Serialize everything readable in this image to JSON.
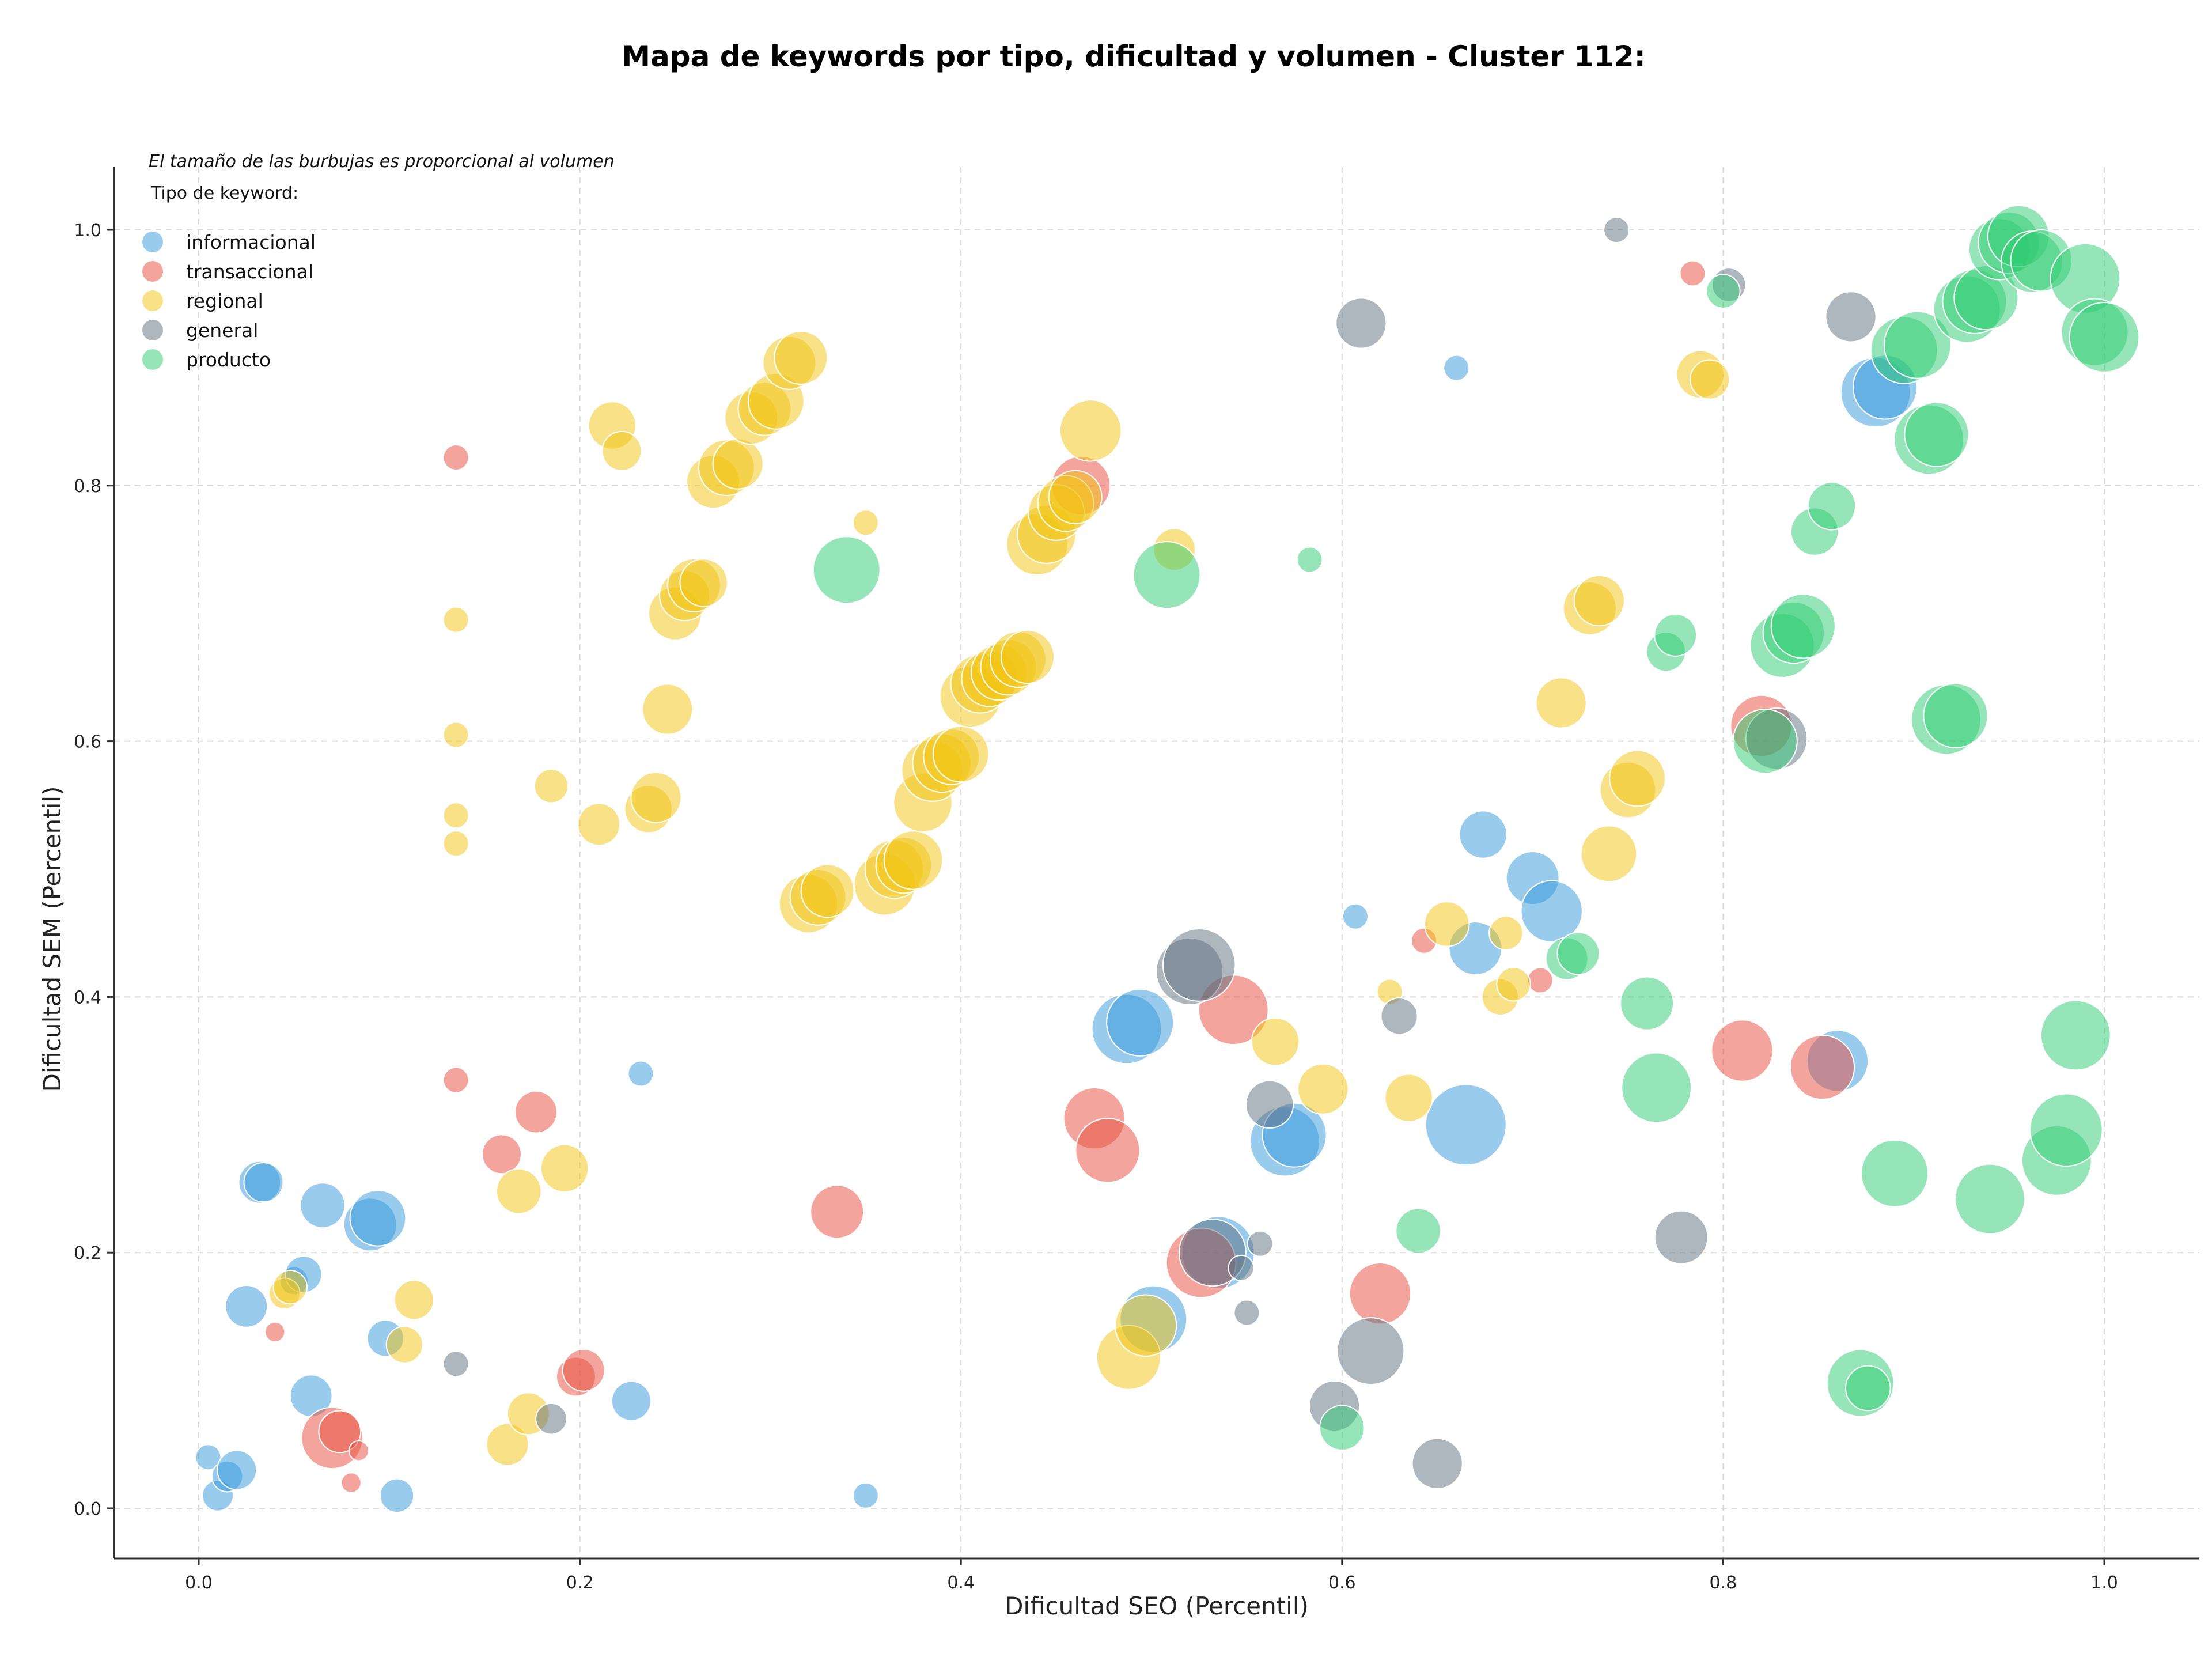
{
  "chart_data": {
    "type": "scatter",
    "title": "Mapa de keywords por tipo, dificultad y volumen - Cluster 112:",
    "xlabel": "Dificultad SEO (Percentil)",
    "ylabel": "Dificultad SEM (Percentil)",
    "xlim": [
      -0.045,
      1.05
    ],
    "ylim": [
      -0.04,
      1.05
    ],
    "xticks": [
      "0.0",
      "0.2",
      "0.4",
      "0.6",
      "0.8",
      "1.0"
    ],
    "yticks": [
      "0.0",
      "0.2",
      "0.4",
      "0.6",
      "0.8",
      "1.0"
    ],
    "grid": true,
    "legend_placement": "top-left",
    "note": "El tamaño de las burbujas es proporcional al volumen",
    "legend_title": "Tipo de keyword:",
    "series": [
      {
        "name": "informacional",
        "color": "#3498db",
        "points": [
          [
            0.005,
            0.04,
            1
          ],
          [
            0.01,
            0.01,
            1.2
          ],
          [
            0.015,
            0.025,
            1.2
          ],
          [
            0.02,
            0.03,
            1.5
          ],
          [
            0.025,
            0.158,
            1.6
          ],
          [
            0.032,
            0.255,
            1.6
          ],
          [
            0.034,
            0.255,
            1.5
          ],
          [
            0.05,
            0.178,
            1.1
          ],
          [
            0.055,
            0.183,
            1.4
          ],
          [
            0.059,
            0.088,
            1.6
          ],
          [
            0.065,
            0.237,
            1.7
          ],
          [
            0.09,
            0.222,
            2.0
          ],
          [
            0.094,
            0.227,
            2.1
          ],
          [
            0.098,
            0.133,
            1.4
          ],
          [
            0.104,
            0.01,
            1.3
          ],
          [
            0.227,
            0.084,
            1.5
          ],
          [
            0.232,
            0.34,
            1.0
          ],
          [
            0.35,
            0.01,
            1.0
          ],
          [
            0.487,
            0.375,
            2.6
          ],
          [
            0.494,
            0.38,
            2.5
          ],
          [
            0.501,
            0.148,
            2.5
          ],
          [
            0.535,
            0.2,
            2.7
          ],
          [
            0.57,
            0.287,
            2.6
          ],
          [
            0.575,
            0.292,
            2.4
          ],
          [
            0.607,
            0.463,
            1.0
          ],
          [
            0.66,
            0.892,
            1.0
          ],
          [
            0.665,
            0.3,
            3.0
          ],
          [
            0.67,
            0.438,
            2.0
          ],
          [
            0.674,
            0.527,
            1.8
          ],
          [
            0.7,
            0.493,
            2.0
          ],
          [
            0.71,
            0.467,
            2.3
          ],
          [
            0.88,
            0.873,
            2.6
          ],
          [
            0.885,
            0.877,
            2.4
          ],
          [
            0.86,
            0.35,
            2.3
          ]
        ]
      },
      {
        "name": "transaccional",
        "color": "#e74c3c",
        "points": [
          [
            0.04,
            0.138,
            0.8
          ],
          [
            0.07,
            0.055,
            2.3
          ],
          [
            0.074,
            0.06,
            1.6
          ],
          [
            0.08,
            0.02,
            0.8
          ],
          [
            0.084,
            0.045,
            0.8
          ],
          [
            0.135,
            0.822,
            1.0
          ],
          [
            0.135,
            0.335,
            1.0
          ],
          [
            0.159,
            0.277,
            1.5
          ],
          [
            0.177,
            0.31,
            1.6
          ],
          [
            0.198,
            0.103,
            1.5
          ],
          [
            0.202,
            0.108,
            1.6
          ],
          [
            0.335,
            0.232,
            2.0
          ],
          [
            0.47,
            0.305,
            2.3
          ],
          [
            0.477,
            0.28,
            2.4
          ],
          [
            0.463,
            0.8,
            2.2
          ],
          [
            0.526,
            0.192,
            2.6
          ],
          [
            0.543,
            0.39,
            2.6
          ],
          [
            0.62,
            0.168,
            2.3
          ],
          [
            0.643,
            0.444,
            1.0
          ],
          [
            0.704,
            0.413,
            1.0
          ],
          [
            0.784,
            0.966,
            1.0
          ],
          [
            0.82,
            0.612,
            2.3
          ],
          [
            0.852,
            0.345,
            2.4
          ],
          [
            0.81,
            0.358,
            2.3
          ]
        ]
      },
      {
        "name": "regional",
        "color": "#f1c40f",
        "points": [
          [
            0.045,
            0.168,
            1.2
          ],
          [
            0.048,
            0.173,
            1.3
          ],
          [
            0.108,
            0.128,
            1.4
          ],
          [
            0.113,
            0.163,
            1.5
          ],
          [
            0.135,
            0.695,
            1.0
          ],
          [
            0.135,
            0.605,
            1.0
          ],
          [
            0.135,
            0.542,
            1.0
          ],
          [
            0.135,
            0.52,
            1.0
          ],
          [
            0.162,
            0.05,
            1.6
          ],
          [
            0.168,
            0.248,
            1.7
          ],
          [
            0.173,
            0.074,
            1.6
          ],
          [
            0.185,
            0.565,
            1.3
          ],
          [
            0.192,
            0.266,
            1.8
          ],
          [
            0.21,
            0.535,
            1.6
          ],
          [
            0.217,
            0.847,
            1.8
          ],
          [
            0.222,
            0.827,
            1.5
          ],
          [
            0.236,
            0.547,
            1.8
          ],
          [
            0.24,
            0.556,
            1.9
          ],
          [
            0.246,
            0.625,
            1.9
          ],
          [
            0.25,
            0.7,
            2.0
          ],
          [
            0.255,
            0.714,
            1.9
          ],
          [
            0.26,
            0.722,
            2.0
          ],
          [
            0.265,
            0.724,
            1.8
          ],
          [
            0.27,
            0.803,
            2.0
          ],
          [
            0.277,
            0.814,
            2.1
          ],
          [
            0.283,
            0.817,
            1.9
          ],
          [
            0.29,
            0.853,
            2.0
          ],
          [
            0.297,
            0.86,
            2.0
          ],
          [
            0.303,
            0.866,
            2.1
          ],
          [
            0.31,
            0.896,
            2.0
          ],
          [
            0.316,
            0.9,
            2.0
          ],
          [
            0.32,
            0.473,
            2.2
          ],
          [
            0.325,
            0.478,
            2.1
          ],
          [
            0.33,
            0.483,
            2.0
          ],
          [
            0.35,
            0.771,
            1.0
          ],
          [
            0.36,
            0.488,
            2.3
          ],
          [
            0.365,
            0.5,
            2.2
          ],
          [
            0.37,
            0.503,
            2.1
          ],
          [
            0.375,
            0.507,
            2.2
          ],
          [
            0.38,
            0.552,
            2.2
          ],
          [
            0.385,
            0.577,
            2.3
          ],
          [
            0.39,
            0.583,
            2.2
          ],
          [
            0.395,
            0.588,
            2.1
          ],
          [
            0.4,
            0.59,
            2.1
          ],
          [
            0.405,
            0.635,
            2.3
          ],
          [
            0.41,
            0.645,
            2.2
          ],
          [
            0.415,
            0.649,
            2.1
          ],
          [
            0.42,
            0.654,
            2.1
          ],
          [
            0.425,
            0.658,
            2.1
          ],
          [
            0.43,
            0.664,
            2.1
          ],
          [
            0.435,
            0.666,
            2.0
          ],
          [
            0.44,
            0.754,
            2.3
          ],
          [
            0.445,
            0.762,
            2.2
          ],
          [
            0.45,
            0.779,
            2.1
          ],
          [
            0.455,
            0.786,
            2.1
          ],
          [
            0.46,
            0.791,
            2.0
          ],
          [
            0.468,
            0.843,
            2.3
          ],
          [
            0.488,
            0.118,
            2.4
          ],
          [
            0.497,
            0.143,
            2.3
          ],
          [
            0.512,
            0.75,
            1.6
          ],
          [
            0.565,
            0.365,
            1.8
          ],
          [
            0.59,
            0.328,
            1.9
          ],
          [
            0.625,
            0.404,
            1.0
          ],
          [
            0.635,
            0.321,
            1.8
          ],
          [
            0.655,
            0.457,
            1.7
          ],
          [
            0.683,
            0.4,
            1.4
          ],
          [
            0.686,
            0.45,
            1.3
          ],
          [
            0.69,
            0.41,
            1.3
          ],
          [
            0.715,
            0.63,
            1.9
          ],
          [
            0.73,
            0.704,
            2.0
          ],
          [
            0.735,
            0.71,
            1.9
          ],
          [
            0.74,
            0.512,
            2.1
          ],
          [
            0.75,
            0.562,
            2.1
          ],
          [
            0.755,
            0.571,
            2.1
          ],
          [
            0.788,
            0.887,
            1.8
          ],
          [
            0.793,
            0.883,
            1.5
          ]
        ]
      },
      {
        "name": "general",
        "color": "#5d6d7e",
        "points": [
          [
            0.135,
            0.113,
            1.0
          ],
          [
            0.185,
            0.07,
            1.2
          ],
          [
            0.52,
            0.42,
            2.5
          ],
          [
            0.525,
            0.425,
            2.7
          ],
          [
            0.532,
            0.2,
            2.5
          ],
          [
            0.547,
            0.188,
            1.0
          ],
          [
            0.55,
            0.153,
            1.0
          ],
          [
            0.557,
            0.207,
            1.0
          ],
          [
            0.562,
            0.316,
            1.8
          ],
          [
            0.596,
            0.08,
            1.9
          ],
          [
            0.61,
            0.927,
            1.9
          ],
          [
            0.615,
            0.123,
            2.5
          ],
          [
            0.63,
            0.385,
            1.4
          ],
          [
            0.65,
            0.035,
            1.9
          ],
          [
            0.744,
            1.0,
            1.0
          ],
          [
            0.778,
            0.212,
            2.0
          ],
          [
            0.803,
            0.957,
            1.3
          ],
          [
            0.828,
            0.602,
            2.3
          ],
          [
            0.867,
            0.932,
            1.9
          ]
        ]
      },
      {
        "name": "producto",
        "color": "#2ecc71",
        "points": [
          [
            0.34,
            0.734,
            2.5
          ],
          [
            0.508,
            0.73,
            2.5
          ],
          [
            0.583,
            0.742,
            1.0
          ],
          [
            0.6,
            0.063,
            1.7
          ],
          [
            0.64,
            0.217,
            1.7
          ],
          [
            0.718,
            0.43,
            1.6
          ],
          [
            0.724,
            0.434,
            1.6
          ],
          [
            0.76,
            0.395,
            2.0
          ],
          [
            0.765,
            0.329,
            2.6
          ],
          [
            0.77,
            0.67,
            1.5
          ],
          [
            0.775,
            0.683,
            1.6
          ],
          [
            0.8,
            0.952,
            1.3
          ],
          [
            0.822,
            0.6,
            2.4
          ],
          [
            0.831,
            0.675,
            2.4
          ],
          [
            0.837,
            0.685,
            2.3
          ],
          [
            0.842,
            0.69,
            2.4
          ],
          [
            0.848,
            0.764,
            1.8
          ],
          [
            0.857,
            0.784,
            1.8
          ],
          [
            0.872,
            0.098,
            2.5
          ],
          [
            0.876,
            0.094,
            1.7
          ],
          [
            0.89,
            0.262,
            2.5
          ],
          [
            0.895,
            0.906,
            2.5
          ],
          [
            0.902,
            0.91,
            2.5
          ],
          [
            0.908,
            0.836,
            2.6
          ],
          [
            0.912,
            0.84,
            2.4
          ],
          [
            0.917,
            0.617,
            2.6
          ],
          [
            0.922,
            0.62,
            2.4
          ],
          [
            0.928,
            0.938,
            2.5
          ],
          [
            0.932,
            0.944,
            2.4
          ],
          [
            0.938,
            0.947,
            2.4
          ],
          [
            0.94,
            0.242,
            2.6
          ],
          [
            0.945,
            0.985,
            2.3
          ],
          [
            0.95,
            0.99,
            2.3
          ],
          [
            0.955,
            0.995,
            2.3
          ],
          [
            0.962,
            0.975,
            2.3
          ],
          [
            0.967,
            0.976,
            2.3
          ],
          [
            0.975,
            0.272,
            2.6
          ],
          [
            0.98,
            0.296,
            2.7
          ],
          [
            0.985,
            0.37,
            2.6
          ],
          [
            0.99,
            0.962,
            2.6
          ],
          [
            0.995,
            0.92,
            2.5
          ],
          [
            1.0,
            0.916,
            2.6
          ]
        ]
      }
    ]
  }
}
